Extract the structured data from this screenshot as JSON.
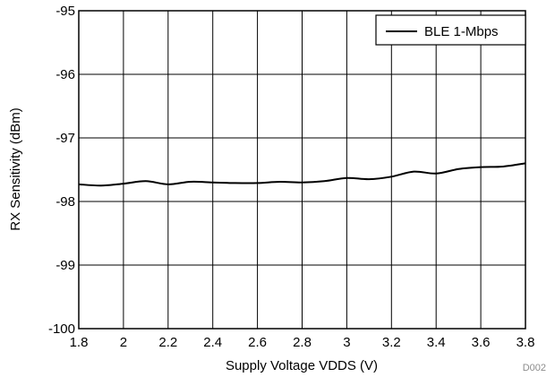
{
  "chart_data": {
    "type": "line",
    "xlabel": "Supply Voltage VDDS (V)",
    "ylabel": "RX Sensitivity (dBm)",
    "xlim": [
      1.8,
      3.8
    ],
    "ylim": [
      -100,
      -95
    ],
    "xticks": [
      1.8,
      2,
      2.2,
      2.4,
      2.6,
      2.8,
      3,
      3.2,
      3.4,
      3.6,
      3.8
    ],
    "xtick_labels": [
      "1.8",
      "2",
      "2.2",
      "2.4",
      "2.6",
      "2.8",
      "3",
      "3.2",
      "3.4",
      "3.6",
      "3.8"
    ],
    "yticks": [
      -95,
      -96,
      -97,
      -98,
      -99,
      -100
    ],
    "ytick_labels": [
      "-95",
      "-96",
      "-97",
      "-98",
      "-99",
      "-100"
    ],
    "grid": true,
    "legend_position": "top-right",
    "series": [
      {
        "name": "BLE 1-Mbps",
        "color": "#000000",
        "x": [
          1.8,
          1.9,
          2.0,
          2.1,
          2.2,
          2.3,
          2.4,
          2.5,
          2.6,
          2.7,
          2.8,
          2.9,
          3.0,
          3.1,
          3.2,
          3.3,
          3.4,
          3.5,
          3.6,
          3.7,
          3.8
        ],
        "y": [
          -97.73,
          -97.75,
          -97.72,
          -97.68,
          -97.73,
          -97.69,
          -97.7,
          -97.71,
          -97.71,
          -97.69,
          -97.7,
          -97.68,
          -97.63,
          -97.65,
          -97.61,
          -97.53,
          -97.56,
          -97.49,
          -97.46,
          -97.45,
          -97.4
        ]
      }
    ],
    "footnote": "D002"
  }
}
